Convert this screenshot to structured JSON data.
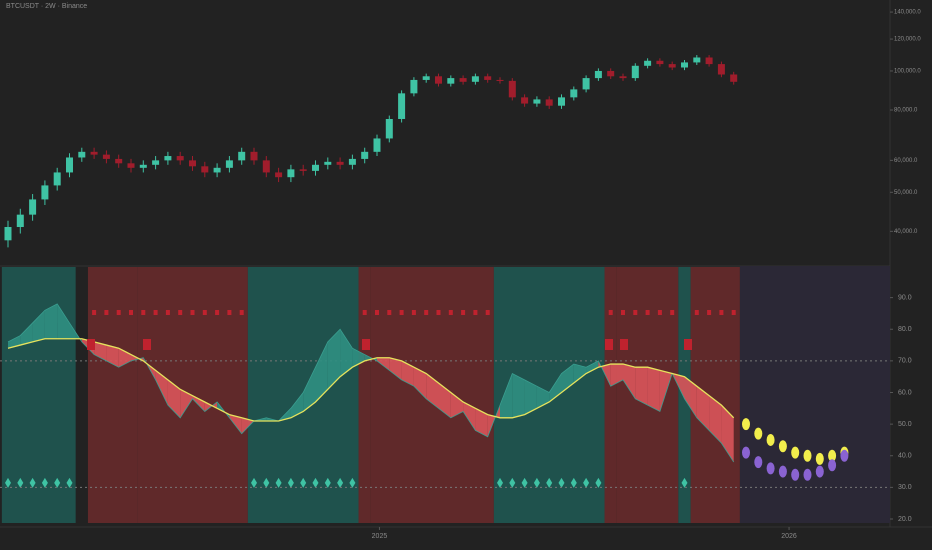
{
  "chart_data": [
    {
      "type": "candlestick",
      "title": "BTCUSDT · 2W · Binance",
      "log_scale": true,
      "ylim": [
        33000,
        150000
      ],
      "yticks": [
        {
          "value": 140000,
          "label": "140,000.0"
        },
        {
          "value": 120000,
          "label": "120,000.0"
        },
        {
          "value": 100000,
          "label": "100,000.0"
        },
        {
          "value": 80000,
          "label": "80,000.0"
        },
        {
          "value": 60000,
          "label": "60,000.0"
        },
        {
          "value": 50000,
          "label": "50,000.0"
        },
        {
          "value": 40000,
          "label": "40,000.0"
        }
      ],
      "up_color": "#3fc3a4",
      "down_color": "#a11d2c",
      "open": [
        38000,
        41000,
        44000,
        48000,
        52000,
        56000,
        61000,
        63000,
        62000,
        60500,
        59000,
        57500,
        58500,
        60000,
        61500,
        60000,
        58000,
        56000,
        57500,
        60000,
        63000,
        60000,
        56000,
        54500,
        57000,
        56500,
        58500,
        59500,
        58500,
        60500,
        63000,
        68000,
        76000,
        88000,
        95000,
        97000,
        93000,
        96000,
        94000,
        97000,
        95000,
        94500,
        86000,
        83000,
        85000,
        82000,
        86000,
        90000,
        96000,
        100000,
        97000,
        96000,
        103000,
        106000,
        104000,
        102000,
        105000,
        108000,
        104000,
        98000
      ],
      "high": [
        42500,
        45500,
        49500,
        53500,
        57500,
        62500,
        64500,
        64500,
        63500,
        62000,
        60500,
        60000,
        61500,
        63000,
        63000,
        61500,
        59500,
        59000,
        61500,
        64500,
        64500,
        61500,
        57500,
        58500,
        58500,
        60000,
        61000,
        61000,
        62000,
        64500,
        69500,
        77500,
        89500,
        96500,
        98500,
        98500,
        97500,
        97500,
        98500,
        98500,
        96500,
        96000,
        87500,
        86500,
        86500,
        87500,
        91500,
        97500,
        101500,
        101500,
        98500,
        104500,
        107500,
        107500,
        105500,
        106500,
        109500,
        109500,
        105500,
        99500
      ],
      "low": [
        36500,
        39500,
        42500,
        46500,
        50500,
        54500,
        59500,
        60500,
        59000,
        57500,
        56000,
        56000,
        57000,
        58500,
        58500,
        56500,
        54500,
        54500,
        56000,
        58500,
        58500,
        54500,
        53000,
        53000,
        55000,
        55000,
        57000,
        57000,
        57000,
        59000,
        61500,
        66500,
        74500,
        86500,
        93500,
        91500,
        91500,
        92500,
        92500,
        93500,
        93000,
        84500,
        81500,
        81500,
        80500,
        80500,
        84500,
        88500,
        94500,
        95500,
        94500,
        94500,
        101500,
        102500,
        100500,
        100500,
        103500,
        102500,
        96500,
        92500
      ],
      "close": [
        41000,
        44000,
        48000,
        52000,
        56000,
        61000,
        63000,
        62000,
        60500,
        59000,
        57500,
        58500,
        60000,
        61500,
        60000,
        58000,
        56000,
        57500,
        60000,
        63000,
        60000,
        56000,
        54500,
        57000,
        56500,
        58500,
        59500,
        58500,
        60500,
        63000,
        68000,
        76000,
        88000,
        95000,
        97000,
        93000,
        96000,
        94000,
        97000,
        95000,
        94500,
        86000,
        83000,
        85000,
        82000,
        86000,
        90000,
        96000,
        100000,
        97000,
        96000,
        103000,
        106000,
        104000,
        102000,
        105000,
        108000,
        104000,
        98000,
        94000
      ]
    },
    {
      "type": "area",
      "ylim": [
        20,
        100
      ],
      "yticks": [
        {
          "value": 20,
          "label": "20.0"
        },
        {
          "value": 30,
          "label": "30.0"
        },
        {
          "value": 40,
          "label": "40.0"
        },
        {
          "value": 50,
          "label": "50.0"
        },
        {
          "value": 60,
          "label": "60.0"
        },
        {
          "value": 70,
          "label": "70.0"
        },
        {
          "value": 80,
          "label": "80.0"
        },
        {
          "value": 90,
          "label": "90.0"
        }
      ],
      "levels": [
        70,
        30
      ],
      "xticks": [
        {
          "value": 30.2,
          "label": "2025"
        },
        {
          "value": 63.5,
          "label": "2026"
        }
      ],
      "bands": [
        {
          "from": 0,
          "to": 5,
          "color": "#1f5a55"
        },
        {
          "from": 7,
          "to": 10,
          "color": "#6b2a2c"
        },
        {
          "from": 11,
          "to": 19,
          "color": "#6b2a2c"
        },
        {
          "from": 20,
          "to": 28,
          "color": "#1f5a55"
        },
        {
          "from": 29,
          "to": 29,
          "color": "#6b2a2c"
        },
        {
          "from": 30,
          "to": 39,
          "color": "#6b2a2c"
        },
        {
          "from": 40,
          "to": 48,
          "color": "#1f5a55"
        },
        {
          "from": 49,
          "to": 49,
          "color": "#6b2a2c"
        },
        {
          "from": 50,
          "to": 54,
          "color": "#6b2a2c"
        },
        {
          "from": 55,
          "to": 55,
          "color": "#1f5a55"
        },
        {
          "from": 56,
          "to": 59,
          "color": "#6b2a2c"
        }
      ],
      "above_color": "#2f8f82",
      "below_color": "#d9545a",
      "forecast_bg": "#2b2836",
      "series": [
        {
          "color": "#3a9e90",
          "values": [
            76,
            78,
            82,
            86,
            88,
            82,
            76,
            72,
            70,
            68,
            70,
            71,
            64,
            56,
            52,
            58,
            54,
            57,
            52,
            47,
            51,
            52,
            51,
            55,
            60,
            68,
            76,
            80,
            74,
            72,
            70,
            67,
            64,
            62,
            58,
            55,
            52,
            54,
            48,
            46,
            56,
            66,
            64,
            62,
            60,
            66,
            69,
            68,
            70,
            62,
            64,
            58,
            56,
            54,
            66,
            58,
            52,
            48,
            44,
            38
          ]
        },
        {
          "color": "#e6e35c",
          "values": [
            74,
            75,
            76,
            77,
            77,
            77,
            77,
            76,
            75,
            74,
            72,
            70,
            67,
            64,
            61,
            59,
            57,
            55,
            53,
            52,
            51,
            51,
            51,
            52,
            54,
            57,
            61,
            65,
            68,
            70,
            71,
            71,
            70,
            68,
            66,
            63,
            60,
            57,
            55,
            53,
            52,
            52,
            53,
            55,
            57,
            60,
            63,
            66,
            68,
            69,
            69,
            68,
            68,
            67,
            66,
            65,
            62,
            59,
            56,
            52
          ]
        }
      ],
      "forecast": {
        "x": [
          60,
          61,
          62,
          63,
          64,
          65,
          66,
          67,
          68
        ],
        "series": [
          {
            "color": "#f2ee4c",
            "values": [
              50,
              47,
              45,
              43,
              41,
              40,
              39,
              40,
              41
            ]
          },
          {
            "color": "#8a63d2",
            "values": [
              41,
              38,
              36,
              35,
              34,
              34,
              35,
              37,
              40
            ]
          }
        ]
      }
    }
  ]
}
